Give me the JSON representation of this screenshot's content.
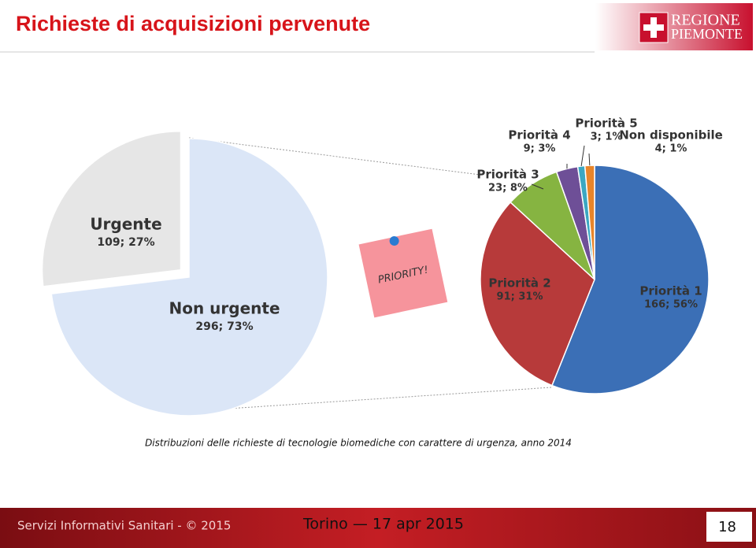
{
  "header": {
    "title": "Richieste di acquisizioni pervenute",
    "logo": [
      "REGIONE",
      "PIEMONTE"
    ]
  },
  "image_text": "PRIORITY!",
  "caption": "Distribuzioni delle richieste di tecnologie biomediche con carattere di urgenza, anno 2014",
  "footer": {
    "left": "Servizi Informativi Sanitari - © 2015",
    "center": "Torino — 17 apr 2015",
    "page": "18"
  },
  "chart_data": [
    {
      "type": "pie",
      "categories": [
        "Non urgente",
        "Urgente"
      ],
      "values": [
        296,
        109
      ],
      "value_labels": [
        "296; 73%",
        "109; 27%"
      ],
      "colors": [
        "#dbe6f7",
        "#e6e6e6"
      ]
    },
    {
      "type": "pie",
      "categories": [
        "Priorità 1",
        "Priorità 2",
        "Priorità 3",
        "Priorità 4",
        "Priorità 5",
        "Non disponibile"
      ],
      "values": [
        166,
        91,
        23,
        9,
        3,
        4
      ],
      "value_labels": [
        "166; 56%",
        "91; 31%",
        "23; 8%",
        "9; 3%",
        "3; 1%",
        "4; 1%"
      ],
      "colors": [
        "#3b6fb6",
        "#b73a3a",
        "#86b441",
        "#6e4f97",
        "#3ba7c2",
        "#e8852a"
      ]
    }
  ]
}
